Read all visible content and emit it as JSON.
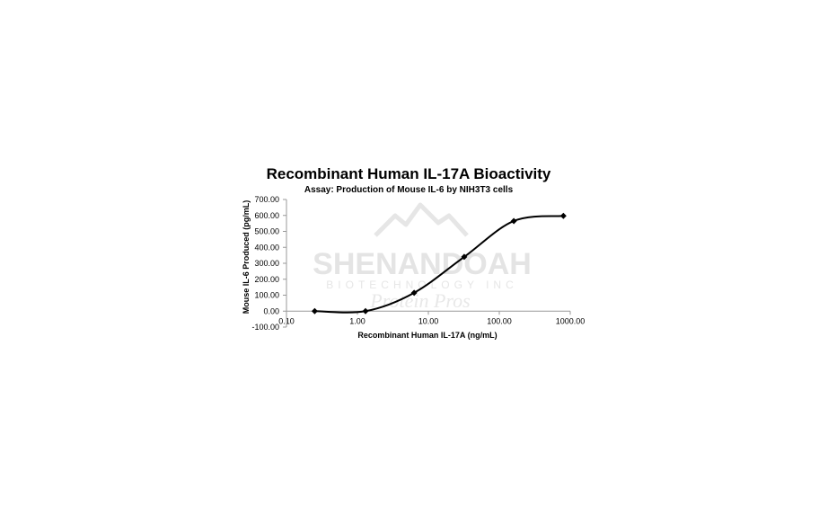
{
  "chart_data": {
    "type": "scatter",
    "title": "Recombinant Human IL-17A Bioactivity",
    "subtitle": "Assay: Production of Mouse IL-6 by NIH3T3 cells",
    "xlabel": "Recombinant Human IL-17A (ng/mL)",
    "ylabel": "Mouse IL-6 Produced (pg/mL)",
    "x_scale": "log",
    "xlim": [
      0.1,
      1000
    ],
    "ylim": [
      -100,
      700
    ],
    "x_ticks": [
      "0.10",
      "1.00",
      "10.00",
      "100.00",
      "1000.00"
    ],
    "y_ticks": [
      "-100.00",
      "0.00",
      "100.00",
      "200.00",
      "300.00",
      "400.00",
      "500.00",
      "600.00",
      "700.00"
    ],
    "grid": false,
    "marker": "diamond",
    "line": "smooth",
    "series": [
      {
        "x": [
          0.25,
          1.3,
          6.3,
          32,
          160,
          800
        ],
        "y": [
          0,
          0,
          115,
          340,
          565,
          597
        ]
      }
    ]
  },
  "watermark": {
    "line1": "SHENANDOAH",
    "line2": "BIOTECHNOLOGY INC",
    "line3": "Protein Pros"
  },
  "colors": {
    "series": "#000000",
    "axis": "#999999",
    "watermark": "#e4e4e4"
  }
}
